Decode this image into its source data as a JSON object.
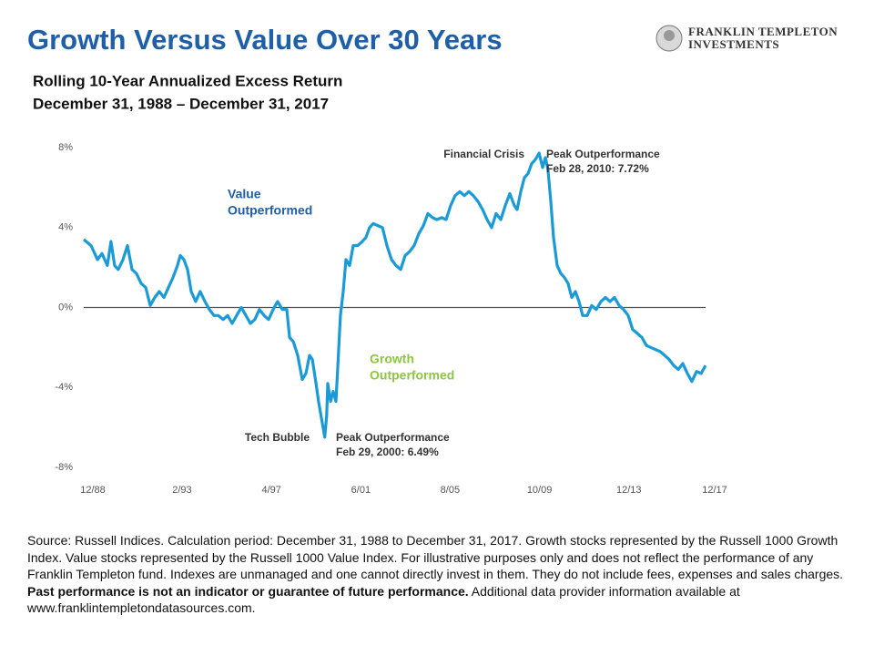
{
  "chart_data": {
    "type": "line",
    "title": "Growth Versus Value Over 30 Years",
    "subtitle": [
      "Rolling 10-Year Annualized Excess Return",
      "December 31, 1988 – December 31, 2017"
    ],
    "logo": [
      "FRANKLIN TEMPLETON",
      "INVESTMENTS"
    ],
    "color": "#1a9ad6",
    "x": [
      1988.92,
      1989.26,
      1989.56,
      1989.77,
      1990.02,
      1990.19,
      1990.36,
      1990.53,
      1990.75,
      1990.96,
      1991.17,
      1991.38,
      1991.6,
      1991.81,
      1992.02,
      1992.23,
      1992.44,
      1992.66,
      1992.87,
      1993.08,
      1993.29,
      1993.42,
      1993.59,
      1993.76,
      1993.93,
      1994.14,
      1994.35,
      1994.57,
      1994.78,
      1994.99,
      1995.2,
      1995.42,
      1995.63,
      1995.84,
      1996.05,
      1996.27,
      1996.48,
      1996.69,
      1996.9,
      1997.11,
      1997.33,
      1997.54,
      1997.75,
      1997.96,
      1998.18,
      1998.39,
      1998.52,
      1998.69,
      1998.9,
      1999.11,
      1999.28,
      1999.45,
      1999.58,
      1999.75,
      1999.87,
      2000.16,
      2000.25,
      2000.3,
      2000.43,
      2000.55,
      2000.68,
      2000.77,
      2000.89,
      2001.02,
      2001.15,
      2001.32,
      2001.49,
      2001.7,
      2001.91,
      2002.08,
      2002.25,
      2002.42,
      2002.63,
      2002.85,
      2003.06,
      2003.27,
      2003.48,
      2003.7,
      2003.91,
      2004.12,
      2004.33,
      2004.55,
      2004.76,
      2004.97,
      2005.18,
      2005.39,
      2005.61,
      2005.82,
      2006.03,
      2006.24,
      2006.46,
      2006.67,
      2006.88,
      2007.09,
      2007.31,
      2007.52,
      2007.73,
      2007.94,
      2008.15,
      2008.37,
      2008.58,
      2008.79,
      2009.0,
      2009.13,
      2009.3,
      2009.47,
      2009.64,
      2009.81,
      2009.98,
      2010.16,
      2010.32,
      2010.45,
      2010.57,
      2010.7,
      2010.83,
      2011.0,
      2011.17,
      2011.34,
      2011.51,
      2011.68,
      2011.85,
      2012.02,
      2012.19,
      2012.4,
      2012.61,
      2012.82,
      2013.04,
      2013.25,
      2013.46,
      2013.67,
      2013.89,
      2014.1,
      2014.31,
      2014.52,
      2014.74,
      2014.95,
      2015.16,
      2015.37,
      2015.58,
      2015.8,
      2016.01,
      2016.22,
      2016.43,
      2016.65,
      2016.86,
      2017.07,
      2017.28,
      2017.5,
      2017.71,
      2017.92
    ],
    "values": [
      3.4,
      3.1,
      2.4,
      2.7,
      2.1,
      3.3,
      2.1,
      1.9,
      2.4,
      3.1,
      1.9,
      1.7,
      1.2,
      1.0,
      0.1,
      0.5,
      0.8,
      0.5,
      1.0,
      1.5,
      2.1,
      2.6,
      2.4,
      1.9,
      0.8,
      0.3,
      0.8,
      0.3,
      -0.1,
      -0.4,
      -0.4,
      -0.6,
      -0.4,
      -0.8,
      -0.4,
      0.0,
      -0.4,
      -0.8,
      -0.6,
      -0.1,
      -0.4,
      -0.6,
      -0.1,
      0.3,
      -0.1,
      -0.1,
      -1.5,
      -1.7,
      -2.4,
      -3.6,
      -3.3,
      -2.4,
      -2.6,
      -3.8,
      -4.7,
      -6.49,
      -5.4,
      -3.8,
      -4.7,
      -4.2,
      -4.7,
      -2.9,
      -0.4,
      0.8,
      2.4,
      2.1,
      3.1,
      3.1,
      3.3,
      3.5,
      4.0,
      4.2,
      4.1,
      4.0,
      3.1,
      2.4,
      2.1,
      1.9,
      2.6,
      2.8,
      3.1,
      3.7,
      4.1,
      4.7,
      4.5,
      4.4,
      4.5,
      4.4,
      5.1,
      5.6,
      5.8,
      5.6,
      5.8,
      5.6,
      5.3,
      4.9,
      4.4,
      4.0,
      4.7,
      4.4,
      5.1,
      5.7,
      5.1,
      4.9,
      5.8,
      6.5,
      6.7,
      7.2,
      7.4,
      7.72,
      7.0,
      7.5,
      6.9,
      5.3,
      3.5,
      2.1,
      1.7,
      1.5,
      1.2,
      0.5,
      0.8,
      0.3,
      -0.4,
      -0.4,
      0.1,
      -0.1,
      0.3,
      0.5,
      0.3,
      0.5,
      0.1,
      -0.1,
      -0.4,
      -1.1,
      -1.3,
      -1.5,
      -1.9,
      -2.0,
      -2.1,
      -2.2,
      -2.4,
      -2.6,
      -2.9,
      -3.1,
      -2.8,
      -3.3,
      -3.7,
      -3.2,
      -3.3,
      -2.9
    ],
    "xlim": [
      1988.92,
      2017.92
    ],
    "xticks": [
      {
        "value": 1988.92,
        "label": "12/88"
      },
      {
        "value": 1993.08,
        "label": "2/93"
      },
      {
        "value": 1997.25,
        "label": "4/97"
      },
      {
        "value": 2001.42,
        "label": "6/01"
      },
      {
        "value": 2005.58,
        "label": "8/05"
      },
      {
        "value": 2009.75,
        "label": "10/09"
      },
      {
        "value": 2013.92,
        "label": "12/13"
      },
      {
        "value": 2017.92,
        "label": "12/17"
      }
    ],
    "ylim": [
      -8,
      8
    ],
    "yticks": [
      {
        "value": 8,
        "label": "8%"
      },
      {
        "value": 4,
        "label": "4%"
      },
      {
        "value": 0,
        "label": "0%"
      },
      {
        "value": -4,
        "label": "-4%"
      },
      {
        "value": -8,
        "label": "-8%"
      }
    ],
    "grid": false,
    "annotations": [
      {
        "lines": [
          "Value",
          "Outperformed"
        ],
        "color": "#1f5fa8"
      },
      {
        "lines": [
          "Growth",
          "Outperformed"
        ],
        "color": "#8dc63f"
      },
      {
        "lines": [
          "Financial Crisis"
        ],
        "color": "#333333"
      },
      {
        "lines": [
          "Peak Outperformance",
          "Feb 28, 2010: 7.72%"
        ],
        "color": "#333333"
      },
      {
        "lines": [
          "Tech Bubble"
        ],
        "color": "#333333"
      },
      {
        "lines": [
          "Peak Outperformance",
          "Feb 29, 2000: 6.49%"
        ],
        "color": "#333333"
      }
    ],
    "source": [
      "Source: Russell Indices. Calculation period: December 31, 1988 to December 31, 2017. Growth stocks represented by the Russell 1000 Growth Index. Value stocks represented by the Russell 1000 Value Index. For illustrative purposes only and does not reflect the performance of any Franklin Templeton fund. Indexes are unmanaged and one cannot directly invest in them. They do not include fees, expenses and sales charges.",
      "Past performance is not an indicator or guarantee of future performance.",
      "Additional data provider information available at www.franklintempletondatasources.com."
    ]
  }
}
